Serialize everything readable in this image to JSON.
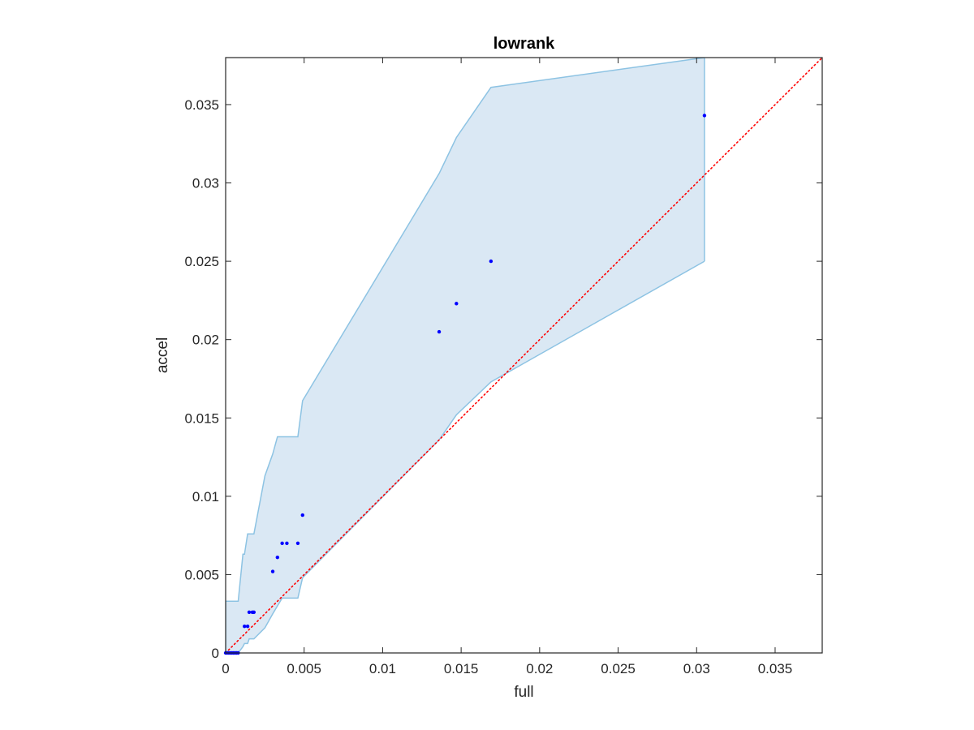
{
  "chart_data": {
    "type": "scatter",
    "title": "lowrank",
    "xlabel": "full",
    "ylabel": "accel",
    "xlim": [
      0,
      0.038
    ],
    "ylim": [
      0,
      0.038
    ],
    "xticks": [
      0,
      0.005,
      0.01,
      0.015,
      0.02,
      0.025,
      0.03,
      0.035
    ],
    "yticks": [
      0,
      0.005,
      0.01,
      0.015,
      0.02,
      0.025,
      0.03,
      0.035
    ],
    "xtick_labels": [
      "0",
      "0.005",
      "0.01",
      "0.015",
      "0.02",
      "0.025",
      "0.03",
      "0.035"
    ],
    "ytick_labels": [
      "0",
      "0.005",
      "0.01",
      "0.015",
      "0.02",
      "0.025",
      "0.03",
      "0.035"
    ],
    "grid": false,
    "points": {
      "x": [
        0.0,
        0.0001,
        0.0002,
        0.0003,
        0.0004,
        0.0005,
        0.0006,
        0.0007,
        0.0008,
        0.0012,
        0.0014,
        0.0015,
        0.0017,
        0.0018,
        0.003,
        0.0033,
        0.0036,
        0.0039,
        0.0046,
        0.0049,
        0.0136,
        0.0147,
        0.0169,
        0.0305
      ],
      "y": [
        0.0,
        0.0,
        0.0,
        0.0,
        0.0,
        0.0,
        0.0,
        0.0,
        0.0,
        0.0017,
        0.0017,
        0.0026,
        0.0026,
        0.0026,
        0.0052,
        0.0061,
        0.007,
        0.007,
        0.007,
        0.0088,
        0.0205,
        0.0223,
        0.025,
        0.0343
      ],
      "color": "#0000ff"
    },
    "band": {
      "x": [
        0.0,
        0.0008,
        0.0011,
        0.0012,
        0.0014,
        0.0015,
        0.0017,
        0.0018,
        0.0025,
        0.003,
        0.0033,
        0.0036,
        0.0039,
        0.0046,
        0.0049,
        0.0136,
        0.0147,
        0.0169,
        0.0305
      ],
      "upper": [
        0.0033,
        0.0033,
        0.0063,
        0.0063,
        0.0076,
        0.0076,
        0.0076,
        0.0076,
        0.0113,
        0.0127,
        0.0138,
        0.0138,
        0.0138,
        0.0138,
        0.0161,
        0.0306,
        0.0329,
        0.0361,
        0.038
      ],
      "lower": [
        0.0,
        0.0,
        0.0004,
        0.0006,
        0.0006,
        0.0009,
        0.0009,
        0.0009,
        0.0016,
        0.0025,
        0.003,
        0.0035,
        0.0035,
        0.0035,
        0.0048,
        0.0136,
        0.0152,
        0.0173,
        0.025
      ],
      "fill_color": "#dae8f4",
      "edge_color": "#8dc3e3"
    },
    "reference_line": {
      "x": [
        0,
        0.038
      ],
      "y": [
        0,
        0.038
      ],
      "color": "#ff0000",
      "style": "dotted"
    }
  }
}
